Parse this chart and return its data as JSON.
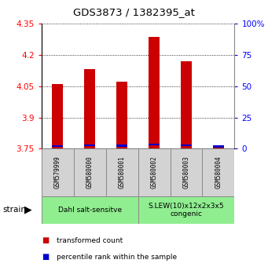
{
  "title": "GDS3873 / 1382395_at",
  "samples": [
    "GSM579999",
    "GSM580000",
    "GSM580001",
    "GSM580002",
    "GSM580003",
    "GSM580004"
  ],
  "red_values": [
    4.06,
    4.13,
    4.07,
    4.285,
    4.17,
    3.757
  ],
  "blue_bar_bottom": [
    3.758,
    3.762,
    3.76,
    3.766,
    3.763,
    3.756
  ],
  "blue_bar_height": 0.009,
  "ymin": 3.75,
  "ymax": 4.35,
  "y_ticks_left": [
    3.75,
    3.9,
    4.05,
    4.2,
    4.35
  ],
  "y_ticks_right_pct": [
    0,
    25,
    50,
    75,
    100
  ],
  "group1_label": "Dahl salt-sensitve",
  "group2_label": "S.LEW(10)x12x2x3x5\ncongenic",
  "group1_color": "#90EE90",
  "group2_color": "#90EE90",
  "bar_width": 0.35,
  "red_color": "#CC0000",
  "blue_color": "#0000CC",
  "legend_red": "transformed count",
  "legend_blue": "percentile rank within the sample",
  "baseline": 3.75,
  "bg_gray": "#D3D3D3",
  "spine_color": "#888888"
}
